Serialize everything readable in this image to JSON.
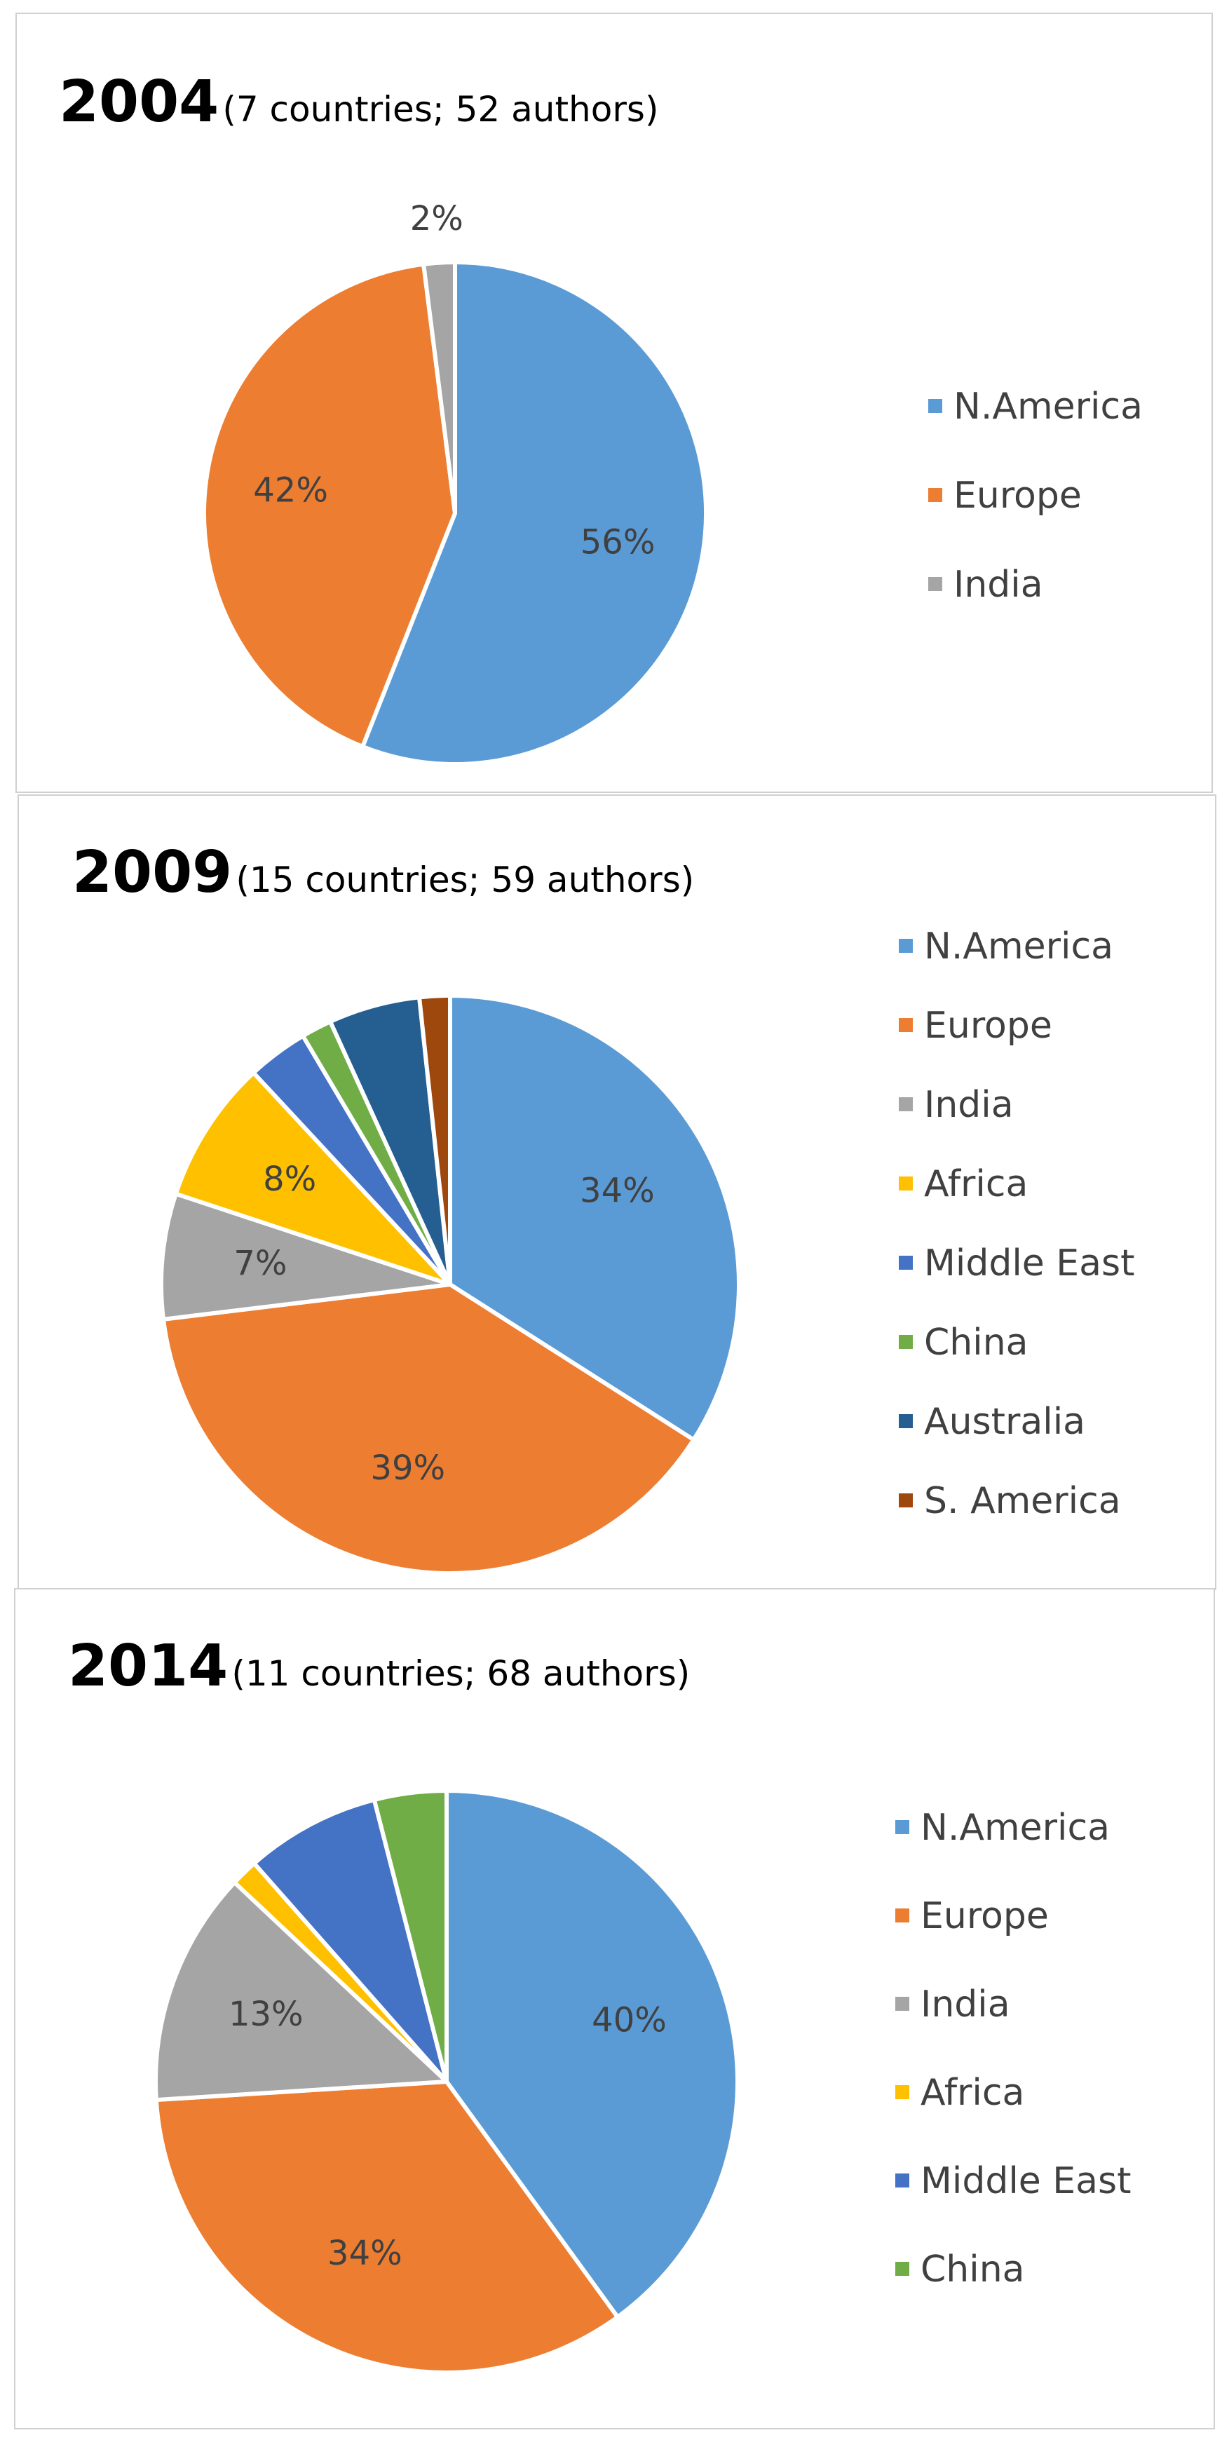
{
  "chart_data": [
    {
      "type": "pie",
      "title": "2004",
      "subtitle": "(7 countries; 52 authors)",
      "categories": [
        "N.America",
        "Europe",
        "India"
      ],
      "values": [
        56,
        42,
        2
      ],
      "data_labels": [
        "56%",
        "42%",
        "2%"
      ],
      "colors": [
        "#5b9bd5",
        "#ed7d31",
        "#a5a5a5"
      ],
      "legend": "right"
    },
    {
      "type": "pie",
      "title": "2009",
      "subtitle": "(15 countries; 59 authors)",
      "categories": [
        "N.America",
        "Europe",
        "India",
        "Africa",
        "Middle East",
        "China",
        "Australia",
        "S. America"
      ],
      "values": [
        34,
        39,
        7,
        8,
        3.4,
        1.7,
        5.1,
        1.7
      ],
      "data_labels": [
        "34%",
        "39%",
        "7%",
        "8%",
        "",
        "",
        "",
        ""
      ],
      "colors": [
        "#5b9bd5",
        "#ed7d31",
        "#a5a5a5",
        "#ffc000",
        "#4472c4",
        "#70ad47",
        "#255e91",
        "#9e480e"
      ],
      "legend": "right"
    },
    {
      "type": "pie",
      "title": "2014",
      "subtitle": "(11 countries; 68 authors)",
      "categories": [
        "N.America",
        "Europe",
        "India",
        "Africa",
        "Middle East",
        "China"
      ],
      "values": [
        40,
        34,
        13,
        1.5,
        7.5,
        4
      ],
      "data_labels": [
        "40%",
        "34%",
        "13%",
        "",
        "",
        ""
      ],
      "colors": [
        "#5b9bd5",
        "#ed7d31",
        "#a5a5a5",
        "#ffc000",
        "#4472c4",
        "#70ad47"
      ],
      "legend": "right"
    }
  ]
}
